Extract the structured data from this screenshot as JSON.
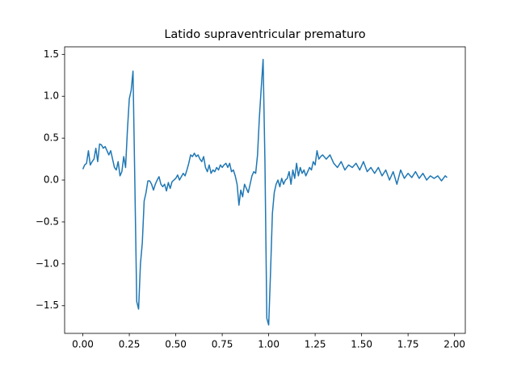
{
  "chart_data": {
    "type": "line",
    "title": "Latido supraventricular prematuro",
    "x": [
      0.0,
      0.01,
      0.02,
      0.03,
      0.04,
      0.05,
      0.06,
      0.07,
      0.08,
      0.09,
      0.1,
      0.11,
      0.12,
      0.13,
      0.14,
      0.15,
      0.16,
      0.17,
      0.18,
      0.19,
      0.2,
      0.21,
      0.22,
      0.23,
      0.24,
      0.25,
      0.26,
      0.27,
      0.28,
      0.29,
      0.3,
      0.31,
      0.32,
      0.33,
      0.34,
      0.35,
      0.36,
      0.37,
      0.38,
      0.39,
      0.4,
      0.41,
      0.42,
      0.43,
      0.44,
      0.45,
      0.46,
      0.47,
      0.48,
      0.49,
      0.5,
      0.51,
      0.52,
      0.53,
      0.54,
      0.55,
      0.56,
      0.57,
      0.58,
      0.59,
      0.6,
      0.61,
      0.62,
      0.63,
      0.64,
      0.65,
      0.66,
      0.67,
      0.68,
      0.69,
      0.7,
      0.71,
      0.72,
      0.73,
      0.74,
      0.75,
      0.76,
      0.77,
      0.78,
      0.79,
      0.8,
      0.81,
      0.82,
      0.83,
      0.84,
      0.85,
      0.86,
      0.87,
      0.88,
      0.89,
      0.9,
      0.91,
      0.92,
      0.93,
      0.94,
      0.95,
      0.96,
      0.97,
      0.98,
      0.99,
      1.0,
      1.01,
      1.02,
      1.03,
      1.04,
      1.05,
      1.06,
      1.07,
      1.08,
      1.09,
      1.1,
      1.11,
      1.12,
      1.13,
      1.14,
      1.15,
      1.16,
      1.17,
      1.18,
      1.19,
      1.2,
      1.21,
      1.22,
      1.23,
      1.24,
      1.25,
      1.26,
      1.27,
      1.28,
      1.29,
      1.31,
      1.33,
      1.35,
      1.37,
      1.39,
      1.41,
      1.43,
      1.45,
      1.47,
      1.49,
      1.51,
      1.53,
      1.55,
      1.57,
      1.59,
      1.61,
      1.63,
      1.65,
      1.67,
      1.69,
      1.71,
      1.73,
      1.75,
      1.77,
      1.79,
      1.81,
      1.83,
      1.85,
      1.87,
      1.89,
      1.91,
      1.93,
      1.95,
      1.96
    ],
    "series": [
      {
        "color": "#1f77b4",
        "values": [
          0.13,
          0.18,
          0.2,
          0.35,
          0.18,
          0.22,
          0.25,
          0.38,
          0.22,
          0.43,
          0.42,
          0.38,
          0.4,
          0.35,
          0.3,
          0.35,
          0.25,
          0.15,
          0.12,
          0.22,
          0.05,
          0.1,
          0.28,
          0.15,
          0.6,
          0.97,
          1.07,
          1.3,
          -0.05,
          -1.45,
          -1.54,
          -1.0,
          -0.75,
          -0.25,
          -0.15,
          -0.01,
          -0.01,
          -0.05,
          -0.12,
          -0.05,
          0.0,
          0.04,
          -0.05,
          -0.08,
          -0.05,
          -0.13,
          -0.03,
          -0.1,
          -0.02,
          0.0,
          0.02,
          0.06,
          0.0,
          0.04,
          0.08,
          0.05,
          0.12,
          0.2,
          0.3,
          0.28,
          0.32,
          0.28,
          0.3,
          0.25,
          0.22,
          0.28,
          0.15,
          0.1,
          0.18,
          0.08,
          0.12,
          0.1,
          0.15,
          0.12,
          0.18,
          0.15,
          0.18,
          0.2,
          0.15,
          0.2,
          0.1,
          0.12,
          0.05,
          -0.05,
          -0.3,
          -0.12,
          -0.2,
          -0.05,
          -0.1,
          -0.15,
          -0.05,
          0.05,
          0.1,
          0.08,
          0.3,
          0.75,
          1.1,
          1.44,
          0.2,
          -1.65,
          -1.73,
          -1.1,
          -0.4,
          -0.15,
          -0.05,
          0.0,
          -0.08,
          0.02,
          -0.05,
          0.0,
          0.02,
          0.1,
          -0.05,
          0.12,
          0.02,
          0.2,
          0.05,
          0.15,
          0.08,
          0.12,
          0.05,
          0.1,
          0.15,
          0.12,
          0.22,
          0.18,
          0.35,
          0.25,
          0.28,
          0.3,
          0.25,
          0.3,
          0.2,
          0.15,
          0.22,
          0.12,
          0.18,
          0.15,
          0.2,
          0.12,
          0.22,
          0.1,
          0.15,
          0.08,
          0.15,
          0.05,
          0.12,
          0.0,
          0.1,
          -0.05,
          0.12,
          0.02,
          0.08,
          0.03,
          0.1,
          0.02,
          0.08,
          0.0,
          0.05,
          0.02,
          0.05,
          -0.01,
          0.05,
          0.03
        ]
      }
    ],
    "xlim": [
      -0.098,
      2.058
    ],
    "ylim": [
      -1.83,
      1.59
    ],
    "xticks": [
      {
        "value": 0,
        "label": "0.00"
      },
      {
        "value": 0.25,
        "label": "0.25"
      },
      {
        "value": 0.5,
        "label": "0.50"
      },
      {
        "value": 0.75,
        "label": "0.75"
      },
      {
        "value": 1,
        "label": "1.00"
      },
      {
        "value": 1.25,
        "label": "1.25"
      },
      {
        "value": 1.5,
        "label": "1.50"
      },
      {
        "value": 1.75,
        "label": "1.75"
      },
      {
        "value": 2,
        "label": "2.00"
      }
    ],
    "yticks": [
      {
        "value": -1.5,
        "label": "−1.5"
      },
      {
        "value": -1,
        "label": "−1.0"
      },
      {
        "value": -0.5,
        "label": "−0.5"
      },
      {
        "value": 0,
        "label": "0.0"
      },
      {
        "value": 0.5,
        "label": "0.5"
      },
      {
        "value": 1,
        "label": "1.0"
      },
      {
        "value": 1.5,
        "label": "1.5"
      }
    ]
  }
}
